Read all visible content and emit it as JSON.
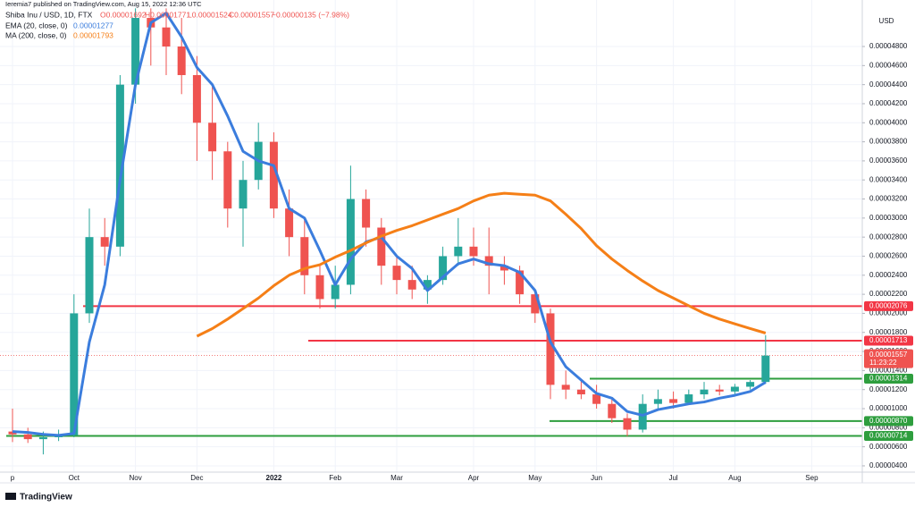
{
  "header": {
    "publisher": "Ieremia7 published on TradingView.com, Aug 15, 2022 12:36 UTC",
    "symbol": "Shiba Inu / USD, 1D, FTX",
    "ohlc": [
      "O0.00001692",
      "H0.00001771",
      "L0.00001524",
      "C0.00001557"
    ],
    "change": "−0.00000135 (−7.98%)"
  },
  "footer": {
    "logo": "TradingView"
  },
  "chart_data": {
    "type": "candlestick",
    "currency": "USD",
    "categories": [
      "p",
      null,
      null,
      null,
      "Oct",
      null,
      null,
      null,
      "Nov",
      null,
      null,
      null,
      "Dec",
      null,
      null,
      null,
      null,
      "2022",
      null,
      null,
      null,
      "Feb",
      null,
      null,
      null,
      "Mar",
      null,
      null,
      null,
      null,
      "Apr",
      null,
      null,
      null,
      "May",
      null,
      null,
      null,
      "Jun",
      null,
      null,
      null,
      null,
      "Jul",
      null,
      null,
      null,
      "Aug",
      null,
      null,
      null,
      null,
      "Sep"
    ],
    "open": [
      7.6e-06,
      7.3e-06,
      6.8e-06,
      7e-06,
      7.2e-06,
      2e-05,
      2.8e-05,
      2.7e-05,
      4.4e-05,
      5.1e-05,
      5e-05,
      4.8e-05,
      4.5e-05,
      4e-05,
      3.7e-05,
      3.1e-05,
      3.4e-05,
      3.8e-05,
      3.1e-05,
      2.8e-05,
      2.4e-05,
      2.15e-05,
      2.3e-05,
      3.2e-05,
      2.9e-05,
      2.5e-05,
      2.35e-05,
      2.25e-05,
      2.35e-05,
      2.6e-05,
      2.7e-05,
      2.6e-05,
      2.5e-05,
      2.45e-05,
      2.2e-05,
      2e-05,
      1.25e-05,
      1.2e-05,
      1.15e-05,
      1.05e-05,
      9e-06,
      7.8e-06,
      1.05e-05,
      1.1e-05,
      1.06e-05,
      1.15e-05,
      1.2e-05,
      1.18e-05,
      1.23e-05,
      1.28e-05,
      null,
      null,
      null
    ],
    "high": [
      1e-05,
      8e-06,
      7.6e-06,
      7.8e-06,
      2.2e-05,
      3.1e-05,
      3e-05,
      4.5e-05,
      5.2e-05,
      5.2e-05,
      5.2e-05,
      5.1e-05,
      4.7e-05,
      4.4e-05,
      3.8e-05,
      3.6e-05,
      4e-05,
      3.9e-05,
      3.3e-05,
      3e-05,
      2.5e-05,
      2.5e-05,
      3.55e-05,
      3.3e-05,
      3e-05,
      2.6e-05,
      2.5e-05,
      2.4e-05,
      2.7e-05,
      3e-05,
      2.9e-05,
      2.9e-05,
      2.6e-05,
      2.5e-05,
      2.25e-05,
      2.05e-05,
      1.4e-05,
      1.3e-05,
      1.25e-05,
      1.1e-05,
      9.5e-06,
      1.15e-05,
      1.2e-05,
      1.18e-05,
      1.2e-05,
      1.28e-05,
      1.25e-05,
      1.26e-05,
      1.3e-05,
      1.771e-05,
      null,
      null,
      null
    ],
    "low": [
      6.5e-06,
      6.4e-06,
      5.2e-06,
      6.6e-06,
      7e-06,
      1.9e-05,
      2.5e-05,
      2.6e-05,
      4.2e-05,
      4.6e-05,
      4.5e-05,
      4.3e-05,
      3.6e-05,
      3.4e-05,
      2.9e-05,
      2.7e-05,
      3.3e-05,
      3e-05,
      2.6e-05,
      2.2e-05,
      2.05e-05,
      2.05e-05,
      2.2e-05,
      2.7e-05,
      2.3e-05,
      2.2e-05,
      2.15e-05,
      2.1e-05,
      2.3e-05,
      2.5e-05,
      2.5e-05,
      2.2e-05,
      2.3e-05,
      2.1e-05,
      1.9e-05,
      1.1e-05,
      1.1e-05,
      1.1e-05,
      1e-05,
      8.5e-06,
      7.1e-06,
      7.5e-06,
      1e-05,
      1e-05,
      1.04e-05,
      1.1e-05,
      1.14e-05,
      1.15e-05,
      1.2e-05,
      1.26e-05,
      null,
      null,
      null
    ],
    "close": [
      7.3e-06,
      6.8e-06,
      7e-06,
      7.2e-06,
      2e-05,
      2.8e-05,
      2.7e-05,
      4.4e-05,
      5.1e-05,
      5e-05,
      4.8e-05,
      4.5e-05,
      4e-05,
      3.7e-05,
      3.1e-05,
      3.4e-05,
      3.8e-05,
      3.1e-05,
      2.8e-05,
      2.4e-05,
      2.15e-05,
      2.3e-05,
      3.2e-05,
      2.9e-05,
      2.5e-05,
      2.35e-05,
      2.25e-05,
      2.35e-05,
      2.6e-05,
      2.7e-05,
      2.6e-05,
      2.5e-05,
      2.45e-05,
      2.2e-05,
      2e-05,
      1.25e-05,
      1.2e-05,
      1.15e-05,
      1.05e-05,
      9e-06,
      7.8e-06,
      1.05e-05,
      1.1e-05,
      1.06e-05,
      1.15e-05,
      1.2e-05,
      1.18e-05,
      1.23e-05,
      1.28e-05,
      1.557e-05,
      null,
      null,
      null
    ],
    "up_color": "#26a69a",
    "down_color": "#ef5350",
    "series": [
      {
        "name": "EMA (20, close, 0)",
        "value_label": "0.00001277",
        "color": "#3b7ddd",
        "values": [
          7.6e-06,
          7.5e-06,
          7.3e-06,
          7.2e-06,
          7.4e-06,
          1.7e-05,
          2.3e-05,
          3.4e-05,
          4.4e-05,
          5.05e-05,
          5.15e-05,
          4.9e-05,
          4.58e-05,
          4.4e-05,
          4.07e-05,
          3.7e-05,
          3.6e-05,
          3.55e-05,
          3.1e-05,
          3e-05,
          2.66e-05,
          2.3e-05,
          2.57e-05,
          2.75e-05,
          2.8e-05,
          2.6e-05,
          2.47e-05,
          2.24e-05,
          2.38e-05,
          2.52e-05,
          2.57e-05,
          2.52e-05,
          2.5e-05,
          2.43e-05,
          2.24e-05,
          1.7e-05,
          1.44e-05,
          1.3e-05,
          1.16e-05,
          1.11e-05,
          9.7e-06,
          9.3e-06,
          9.9e-06,
          1.02e-05,
          1.05e-05,
          1.07e-05,
          1.11e-05,
          1.14e-05,
          1.18e-05,
          1.277e-05,
          null,
          null,
          null
        ]
      },
      {
        "name": "MA (200, close, 0)",
        "value_label": "0.00001793",
        "color": "#f57f17",
        "values": [
          null,
          null,
          null,
          null,
          null,
          null,
          null,
          null,
          null,
          null,
          null,
          null,
          1.76e-05,
          1.84e-05,
          1.94e-05,
          2.05e-05,
          2.16e-05,
          2.29e-05,
          2.4e-05,
          2.47e-05,
          2.51e-05,
          2.59e-05,
          2.66e-05,
          2.74e-05,
          2.81e-05,
          2.87e-05,
          2.92e-05,
          2.98e-05,
          3.04e-05,
          3.1e-05,
          3.18e-05,
          3.24e-05,
          3.26e-05,
          3.25e-05,
          3.24e-05,
          3.18e-05,
          3.04e-05,
          2.89e-05,
          2.71e-05,
          2.57e-05,
          2.45e-05,
          2.34e-05,
          2.24e-05,
          2.16e-05,
          2.08e-05,
          2e-05,
          1.94e-05,
          1.89e-05,
          1.84e-05,
          1.793e-05,
          null,
          null,
          null
        ]
      }
    ],
    "levels": [
      {
        "value": 2.076e-05,
        "label": "0.00002076",
        "color": "#f23645"
      },
      {
        "value": 1.713e-05,
        "label": "0.00001713",
        "color": "#f23645"
      },
      {
        "value": 1.314e-05,
        "label": "0.00001314",
        "color": "#2e9e3e"
      },
      {
        "value": 8.7e-06,
        "label": "0.00000870",
        "color": "#2e9e3e"
      },
      {
        "value": 7.14e-06,
        "label": "0.00000714",
        "color": "#2e9e3e"
      }
    ],
    "last_price": {
      "value": 1.557e-05,
      "label": "0.00001557",
      "countdown": "11:23:22",
      "color": "#ef5350"
    },
    "ylim": [
      3.34e-06,
      5.288e-05
    ],
    "yticks": [
      {
        "value": 4e-06,
        "label": "0.00000400"
      },
      {
        "value": 6e-06,
        "label": "0.00000600"
      },
      {
        "value": 8e-06,
        "label": "0.00000800"
      },
      {
        "value": 1e-05,
        "label": "0.00001000"
      },
      {
        "value": 1.2e-05,
        "label": "0.00001200"
      },
      {
        "value": 1.4e-05,
        "label": "0.00001400"
      },
      {
        "value": 1.6e-05,
        "label": "0.00001600"
      },
      {
        "value": 1.8e-05,
        "label": "0.00001800"
      },
      {
        "value": 2e-05,
        "label": "0.00002000"
      },
      {
        "value": 2.2e-05,
        "label": "0.00002200"
      },
      {
        "value": 2.4e-05,
        "label": "0.00002400"
      },
      {
        "value": 2.6e-05,
        "label": "0.00002600"
      },
      {
        "value": 2.8e-05,
        "label": "0.00002800"
      },
      {
        "value": 3e-05,
        "label": "0.00003000"
      },
      {
        "value": 3.2e-05,
        "label": "0.00003200"
      },
      {
        "value": 3.4e-05,
        "label": "0.00003400"
      },
      {
        "value": 3.6e-05,
        "label": "0.00003600"
      },
      {
        "value": 3.8e-05,
        "label": "0.00003800"
      },
      {
        "value": 4e-05,
        "label": "0.00004000"
      },
      {
        "value": 4.2e-05,
        "label": "0.00004200"
      },
      {
        "value": 4.4e-05,
        "label": "0.00004400"
      },
      {
        "value": 4.6e-05,
        "label": "0.00004600"
      },
      {
        "value": 4.8e-05,
        "label": "0.00004800"
      }
    ],
    "grid": true
  }
}
